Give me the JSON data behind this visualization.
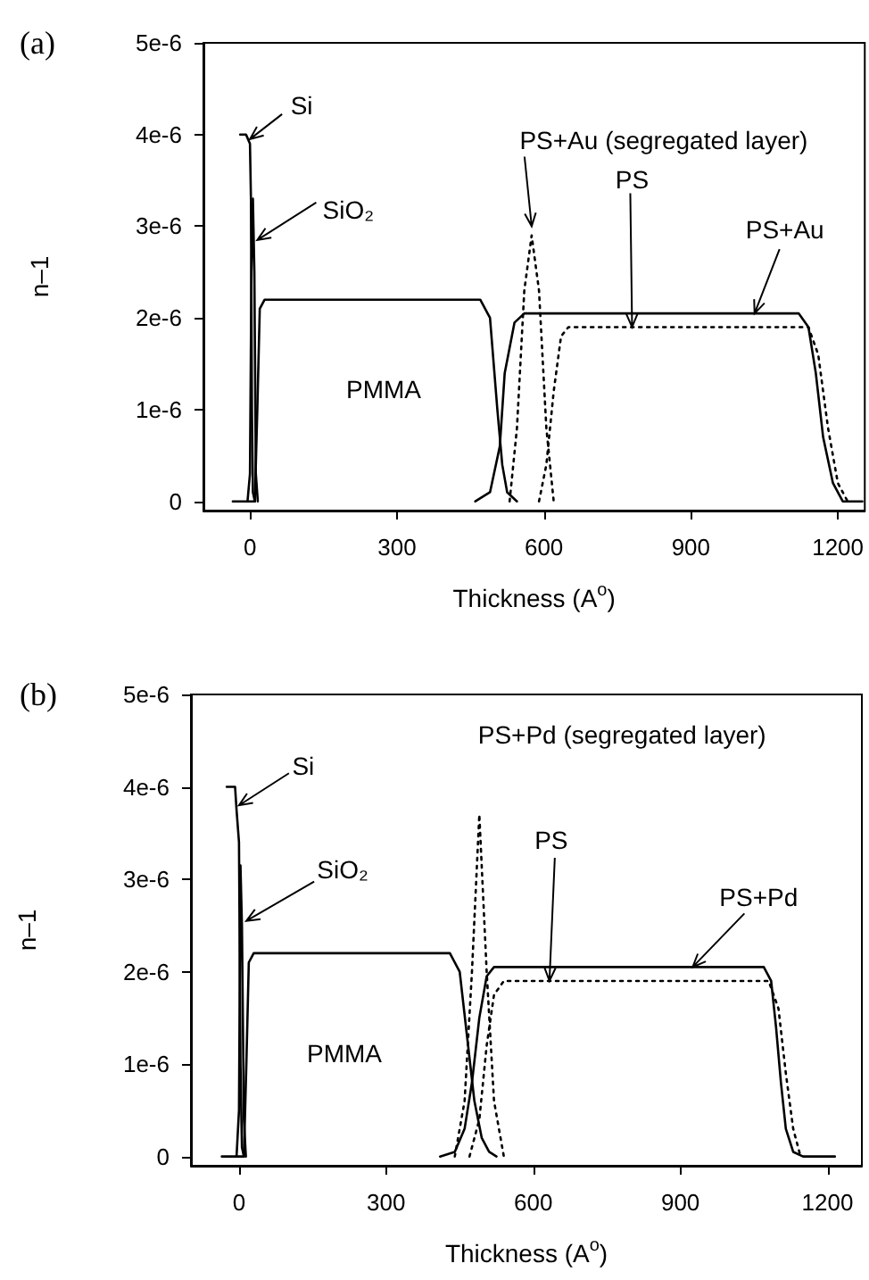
{
  "chart_data": [
    {
      "type": "line",
      "title": "(a)",
      "xlabel": "Thickness (A$^{o}$)",
      "ylabel": "n–1",
      "marker": "none",
      "xlim": [
        -95,
        1255
      ],
      "ylim": [
        -1e-07,
        5e-06
      ],
      "xticks": [
        0,
        300,
        600,
        900,
        1200
      ],
      "yticks": [
        0,
        {
          "value": 1e-06,
          "label": "1e-6"
        },
        {
          "value": 2e-06,
          "label": "2e-6"
        },
        {
          "value": 3e-06,
          "label": "3e-6"
        },
        {
          "value": 4e-06,
          "label": "4e-6"
        },
        {
          "value": 5e-06,
          "label": "5e-6"
        }
      ],
      "series": [
        {
          "color": "#000000",
          "line_style": "solid",
          "x": [
            -20,
            -8,
            -4,
            0,
            2,
            4,
            6,
            10
          ],
          "values": [
            4e-06,
            4e-06,
            3.95e-06,
            3.9e-06,
            3.3e-06,
            1e-06,
            1e-07,
            0
          ]
        },
        {
          "color": "#000000",
          "line_style": "solid",
          "x": [
            -5,
            0,
            3,
            6,
            9,
            12,
            16
          ],
          "values": [
            0,
            3e-07,
            2.5e-06,
            3.3e-06,
            2.5e-06,
            3e-07,
            0
          ]
        },
        {
          "color": "#000000",
          "line_style": "solid",
          "x": [
            -35,
            10,
            15,
            20,
            30,
            470,
            490,
            505,
            515,
            525,
            545
          ],
          "values": [
            0,
            0,
            1e-06,
            2.1e-06,
            2.2e-06,
            2.2e-06,
            2e-06,
            1e-06,
            4e-07,
            1e-07,
            0
          ]
        },
        {
          "color": "#000000",
          "line_style": "solid",
          "x": [
            460,
            490,
            510,
            520,
            540,
            560,
            1120,
            1140,
            1155,
            1170,
            1190,
            1210,
            1250
          ],
          "values": [
            0,
            1e-07,
            6e-07,
            1.4e-06,
            1.95e-06,
            2.05e-06,
            2.05e-06,
            1.9e-06,
            1.4e-06,
            7e-07,
            2e-07,
            0,
            0
          ]
        },
        {
          "color": "#000000",
          "line_style": "dotted",
          "x": [
            530,
            545,
            560,
            575,
            590,
            605,
            620
          ],
          "values": [
            0,
            8e-07,
            2.3e-06,
            2.9e-06,
            2.3e-06,
            8e-07,
            0
          ]
        },
        {
          "color": "#000000",
          "line_style": "dotted",
          "x": [
            590,
            605,
            620,
            635,
            650,
            1140,
            1160,
            1180,
            1200,
            1220
          ],
          "values": [
            0,
            4e-07,
            1.2e-06,
            1.8e-06,
            1.9e-06,
            1.9e-06,
            1.6e-06,
            8e-07,
            2e-07,
            0
          ]
        }
      ],
      "annotations": [
        {
          "text": "Si",
          "x": 0,
          "y": 3.95e-06
        },
        {
          "text": "SiO₂",
          "x": 15,
          "y": 2.85e-06
        },
        {
          "text": "PS+Au (segregated layer)",
          "x": 575,
          "y": 3e-06
        },
        {
          "text": "PS",
          "x": 780,
          "y": 1.9e-06
        },
        {
          "text": "PS+Au",
          "x": 1030,
          "y": 2.05e-06
        },
        "PMMA"
      ]
    },
    {
      "type": "line",
      "title": "(b)",
      "xlabel": "Thickness (A$^{o}$)",
      "ylabel": "n–1",
      "marker": "none",
      "xlim": [
        -98,
        1270
      ],
      "ylim": [
        -1e-07,
        5e-06
      ],
      "xticks": [
        0,
        300,
        600,
        900,
        1200
      ],
      "yticks": [
        0,
        {
          "value": 1e-06,
          "label": "1e-6"
        },
        {
          "value": 2e-06,
          "label": "2e-6"
        },
        {
          "value": 3e-06,
          "label": "3e-6"
        },
        {
          "value": 4e-06,
          "label": "4e-6"
        },
        {
          "value": 5e-06,
          "label": "5e-6"
        }
      ],
      "series": [
        {
          "color": "#000000",
          "line_style": "solid",
          "x": [
            -25,
            -8,
            -5,
            0,
            3,
            6,
            10
          ],
          "values": [
            4e-06,
            4e-06,
            3.75e-06,
            3.4e-06,
            1e-06,
            1e-07,
            0
          ]
        },
        {
          "color": "#000000",
          "line_style": "solid",
          "x": [
            -5,
            0,
            3,
            6,
            10,
            14
          ],
          "values": [
            0,
            5e-07,
            3.15e-06,
            2.5e-06,
            4e-07,
            0
          ]
        },
        {
          "color": "#000000",
          "line_style": "solid",
          "x": [
            -35,
            10,
            15,
            20,
            30,
            430,
            450,
            465,
            480,
            495,
            510,
            525
          ],
          "values": [
            0,
            0,
            1e-06,
            2.1e-06,
            2.2e-06,
            2.2e-06,
            2e-06,
            1.3e-06,
            6e-07,
            2e-07,
            5e-08,
            0
          ]
        },
        {
          "color": "#000000",
          "line_style": "solid",
          "x": [
            410,
            440,
            460,
            475,
            490,
            505,
            520,
            535,
            1070,
            1085,
            1095,
            1105,
            1115,
            1130,
            1150,
            1215
          ],
          "values": [
            0,
            5e-08,
            3e-07,
            8e-07,
            1.5e-06,
            1.95e-06,
            2.05e-06,
            2.05e-06,
            2.05e-06,
            1.9e-06,
            1.4e-06,
            8e-07,
            3e-07,
            5e-08,
            0,
            0
          ]
        },
        {
          "color": "#000000",
          "line_style": "dotted",
          "x": [
            440,
            460,
            475,
            490,
            505,
            520,
            540
          ],
          "values": [
            0,
            6e-07,
            2e-06,
            3.7e-06,
            2e-06,
            6e-07,
            0
          ]
        },
        {
          "color": "#000000",
          "line_style": "dotted",
          "x": [
            470,
            490,
            505,
            520,
            540,
            1080,
            1100,
            1115,
            1130,
            1145
          ],
          "values": [
            0,
            4e-07,
            1.2e-06,
            1.75e-06,
            1.9e-06,
            1.9e-06,
            1.6e-06,
            9e-07,
            3e-07,
            0
          ]
        }
      ],
      "annotations": [
        {
          "text": "Si",
          "x": 0,
          "y": 3.8e-06
        },
        {
          "text": "SiO₂",
          "x": 15,
          "y": 2.55e-06
        },
        {
          "text": "PS+Pd (segregated layer)",
          "x": 490,
          "y": 3.7e-06
        },
        {
          "text": "PS",
          "x": 633,
          "y": 1.9e-06
        },
        {
          "text": "PS+Pd",
          "x": 925,
          "y": 2.05e-06
        },
        "PMMA"
      ]
    }
  ]
}
